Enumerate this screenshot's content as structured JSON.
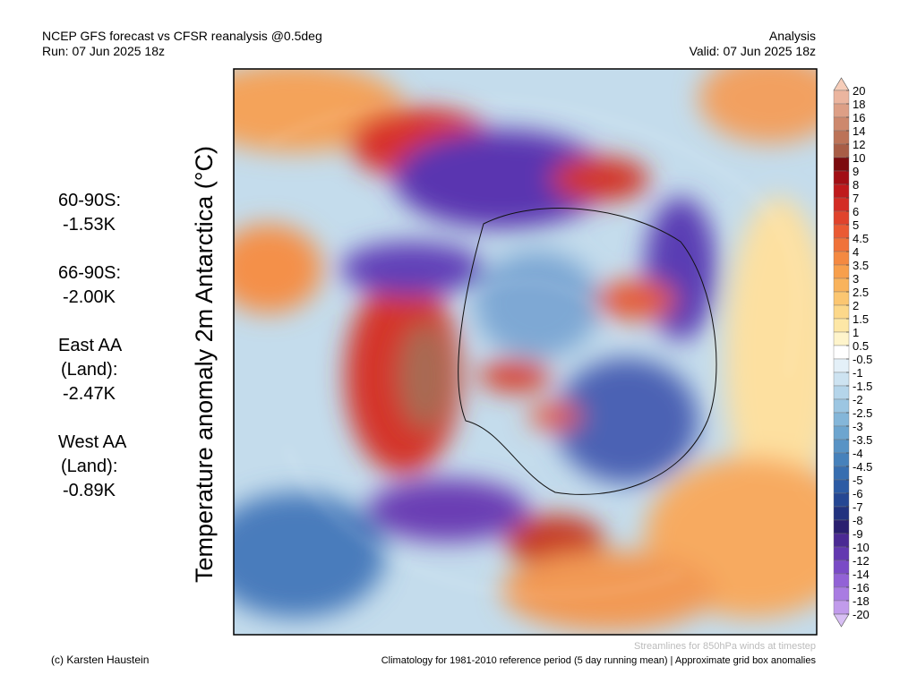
{
  "header": {
    "title": "NCEP GFS forecast vs CFSR reanalysis @0.5deg",
    "run": "Run: 07 Jun 2025 18z",
    "mode": "Analysis",
    "valid": "Valid: 07 Jun 2025 18z"
  },
  "axis_title": "Temperature anomaly 2m Antarctica (°C)",
  "stats": [
    {
      "label": [
        "60-90S:"
      ],
      "value": "-1.53K"
    },
    {
      "label": [
        "66-90S:"
      ],
      "value": "-2.00K"
    },
    {
      "label": [
        "East AA",
        "(Land):"
      ],
      "value": "-2.47K"
    },
    {
      "label": [
        "West AA",
        "(Land):"
      ],
      "value": "-0.89K"
    }
  ],
  "colorbar": {
    "labels": [
      20,
      18,
      16,
      14,
      12,
      10,
      9,
      8,
      7,
      6,
      5,
      4.5,
      4,
      3.5,
      3,
      2.5,
      2,
      1.5,
      1,
      0.5,
      -0.5,
      -1,
      -1.5,
      -2,
      -2.5,
      -3,
      -3.5,
      -4,
      -4.5,
      -5,
      -6,
      -7,
      -8,
      -9,
      -10,
      -12,
      -14,
      -16,
      -18,
      -20
    ],
    "colors": [
      "#f6cdb9",
      "#ebb59f",
      "#dd9f86",
      "#cd886d",
      "#bc7358",
      "#a85d46",
      "#7c0b0e",
      "#a20f15",
      "#bf1a1c",
      "#d32c24",
      "#e0432c",
      "#ea5a33",
      "#f07239",
      "#f48941",
      "#f79f4c",
      "#f9b35c",
      "#fbc671",
      "#fcd88a",
      "#fde7a6",
      "#fef4cb",
      "#ffffff",
      "#e4f0f8",
      "#cde3f1",
      "#b5d5ea",
      "#9cc6e2",
      "#84b6d9",
      "#6da5cf",
      "#5893c5",
      "#4681bb",
      "#376eb0",
      "#2c5ba4",
      "#254793",
      "#22337f",
      "#2a1f6f",
      "#4b2a94",
      "#6338b0",
      "#7a4bc6",
      "#9262d6",
      "#a97ce2",
      "#c19beb",
      "#d8bff4"
    ]
  },
  "footer": {
    "streamlines": "Streamlines for 850hPa winds at timestep",
    "credit": "(c) Karsten Haustein",
    "climatology": "Climatology for 1981-2010 reference period (5 day running mean) | Approximate grid box anomalies"
  }
}
